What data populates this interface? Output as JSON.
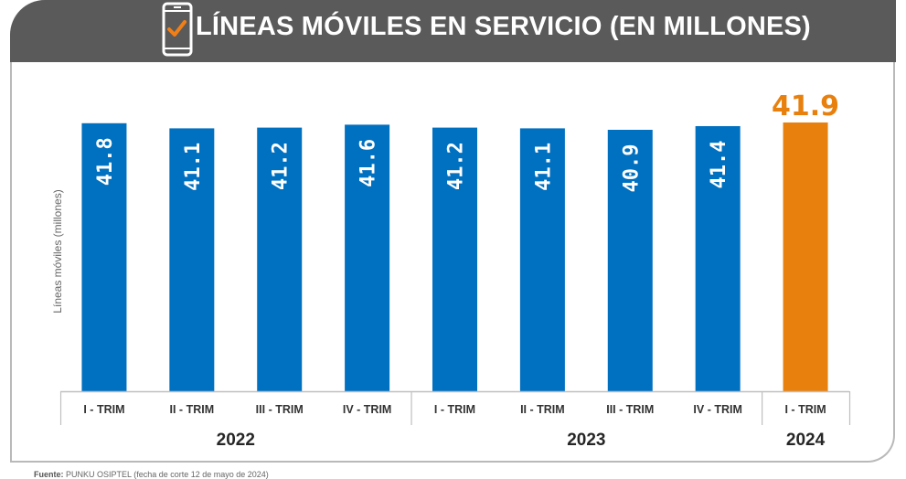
{
  "header": {
    "title": "LÍNEAS MÓVILES EN SERVICIO (EN MILLONES)",
    "icon": "smartphone-check-icon",
    "background": "#5a5a5a",
    "icon_check_color": "#f07f18"
  },
  "footer": {
    "source_label": "Fuente:",
    "source_text": "PUNKU OSIPTEL (fecha de corte 12 de mayo de 2024)"
  },
  "chart_data": {
    "type": "bar",
    "title": "LÍNEAS MÓVILES EN SERVICIO (EN MILLONES)",
    "ylabel": "Líneas móviles (millones)",
    "xlabel": "",
    "ylim": [
      0,
      42
    ],
    "grid": false,
    "categories": [
      "I - TRIM",
      "II - TRIM",
      "III - TRIM",
      "IV - TRIM",
      "I - TRIM",
      "II - TRIM",
      "III - TRIM",
      "IV - TRIM",
      "I - TRIM"
    ],
    "values": [
      41.8,
      41.1,
      41.2,
      41.6,
      41.2,
      41.1,
      40.9,
      41.4,
      41.9
    ],
    "data_labels": [
      "41.8",
      "41.1",
      "41.2",
      "41.6",
      "41.2",
      "41.1",
      "40.9",
      "41.4",
      "41.9"
    ],
    "groups": [
      {
        "label": "2022",
        "count": 4
      },
      {
        "label": "2023",
        "count": 4
      },
      {
        "label": "2024",
        "count": 1
      }
    ],
    "colors": [
      "#0070c0",
      "#0070c0",
      "#0070c0",
      "#0070c0",
      "#0070c0",
      "#0070c0",
      "#0070c0",
      "#0070c0",
      "#e8800e"
    ],
    "highlight_label_color": "#e8800e"
  }
}
